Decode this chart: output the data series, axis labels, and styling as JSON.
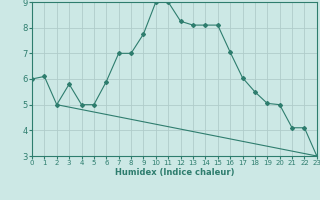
{
  "xlabel": "Humidex (Indice chaleur)",
  "ylabel": "",
  "bg_color": "#cce8e5",
  "grid_color": "#b0ccca",
  "line_color": "#2e7d6e",
  "curve1_x": [
    0,
    1,
    2,
    3,
    4,
    5,
    6,
    7,
    8,
    9,
    10,
    11,
    12,
    13,
    14,
    15,
    16,
    17,
    18,
    19,
    20,
    21,
    22,
    23
  ],
  "curve1_y": [
    6.0,
    6.1,
    5.0,
    5.8,
    5.0,
    5.0,
    5.9,
    7.0,
    7.0,
    7.75,
    9.0,
    9.0,
    8.25,
    8.1,
    8.1,
    8.1,
    7.05,
    6.05,
    5.5,
    5.05,
    5.0,
    4.1,
    4.1,
    3.0
  ],
  "curve2_x": [
    2,
    23
  ],
  "curve2_y": [
    5.0,
    3.0
  ],
  "ylim": [
    3,
    9
  ],
  "xlim": [
    0,
    23
  ],
  "yticks": [
    3,
    4,
    5,
    6,
    7,
    8,
    9
  ],
  "xticks": [
    0,
    1,
    2,
    3,
    4,
    5,
    6,
    7,
    8,
    9,
    10,
    11,
    12,
    13,
    14,
    15,
    16,
    17,
    18,
    19,
    20,
    21,
    22,
    23
  ]
}
